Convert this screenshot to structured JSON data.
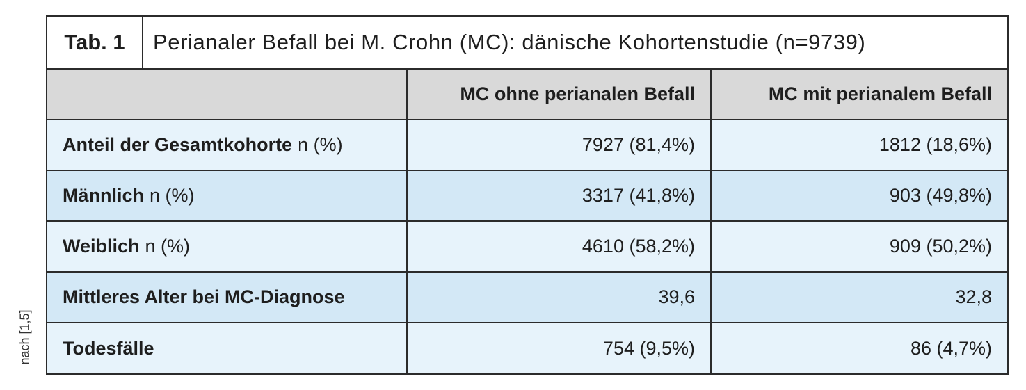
{
  "side_note": "nach [1,5]",
  "table": {
    "tag": "Tab. 1",
    "title": "Perianaler Befall bei M. Crohn (MC): dänische Kohortenstudie (n=9739)",
    "headers": [
      "",
      "MC ohne perianalen Befall",
      "MC mit perianalem Befall"
    ],
    "rows": [
      {
        "label": "Anteil der Gesamtkohorte",
        "unit": "n (%)",
        "col1": "7927 (81,4%)",
        "col2": "1812 (18,6%)"
      },
      {
        "label": "Männlich",
        "unit": "n (%)",
        "col1": "3317 (41,8%)",
        "col2": "903 (49,8%)"
      },
      {
        "label": "Weiblich",
        "unit": "n (%)",
        "col1": "4610 (58,2%)",
        "col2": "909 (50,2%)"
      },
      {
        "label": "Mittleres Alter bei MC-Diagnose",
        "unit": "",
        "col1": "39,6",
        "col2": "32,8"
      },
      {
        "label": "Todesfälle",
        "unit": "",
        "col1": "754 (9,5%)",
        "col2": "86 (4,7%)"
      }
    ]
  },
  "colors": {
    "header_bg": "#d9d9d9",
    "row_light": "#e7f3fb",
    "row_dark": "#d3e8f6",
    "border": "#2b2b2b"
  }
}
